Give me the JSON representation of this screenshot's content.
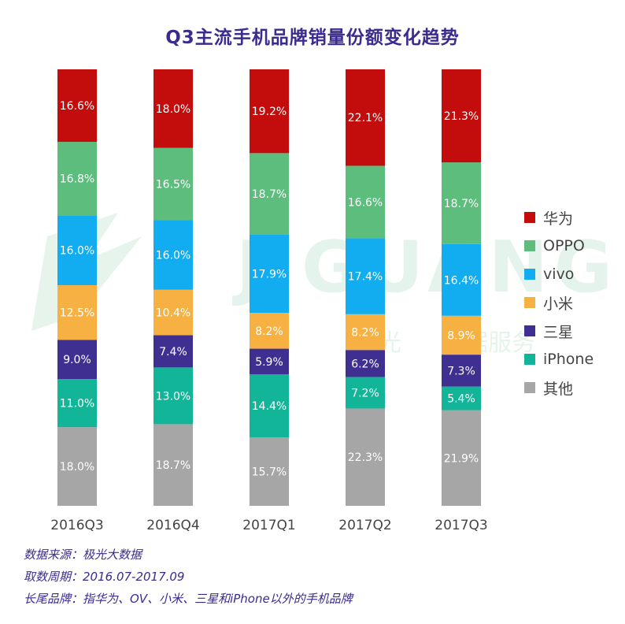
{
  "chart_data": {
    "type": "bar",
    "stacked": true,
    "normalized": true,
    "title": "Q3主流手机品牌销量份额变化趋势",
    "categories": [
      "2016Q3",
      "2016Q4",
      "2017Q1",
      "2017Q2",
      "2017Q3"
    ],
    "series": [
      {
        "name": "其他",
        "color": "#a6a6a6",
        "values": [
          18.0,
          18.7,
          15.7,
          22.3,
          21.9
        ]
      },
      {
        "name": "iPhone",
        "color": "#13b599",
        "values": [
          11.0,
          13.0,
          14.4,
          7.2,
          5.4
        ]
      },
      {
        "name": "三星",
        "color": "#3f2f91",
        "values": [
          9.0,
          7.4,
          5.9,
          6.2,
          7.3
        ]
      },
      {
        "name": "小米",
        "color": "#f7b143",
        "values": [
          12.5,
          10.4,
          8.2,
          8.2,
          8.9
        ]
      },
      {
        "name": "vivo",
        "color": "#11adf0",
        "values": [
          16.0,
          16.0,
          17.9,
          17.4,
          16.4
        ]
      },
      {
        "name": "OPPO",
        "color": "#5cbd7d",
        "values": [
          16.8,
          16.5,
          18.7,
          16.6,
          18.7
        ]
      },
      {
        "name": "华为",
        "color": "#c30d0d",
        "values": [
          16.6,
          18.0,
          19.2,
          22.1,
          21.3
        ]
      }
    ],
    "legend_order": [
      "华为",
      "OPPO",
      "vivo",
      "小米",
      "三星",
      "iPhone",
      "其他"
    ],
    "legend_position": "right",
    "value_suffix": "%",
    "grid": false
  },
  "watermark": {
    "brand": "JIGUANG",
    "text_cn": "极光",
    "text_cn2": "数据服务"
  },
  "notes": [
    "数据来源：极光大数据",
    "取数周期：2016.07-2017.09",
    "长尾品牌：指华为、OV、小米、三星和iPhone以外的手机品牌"
  ]
}
